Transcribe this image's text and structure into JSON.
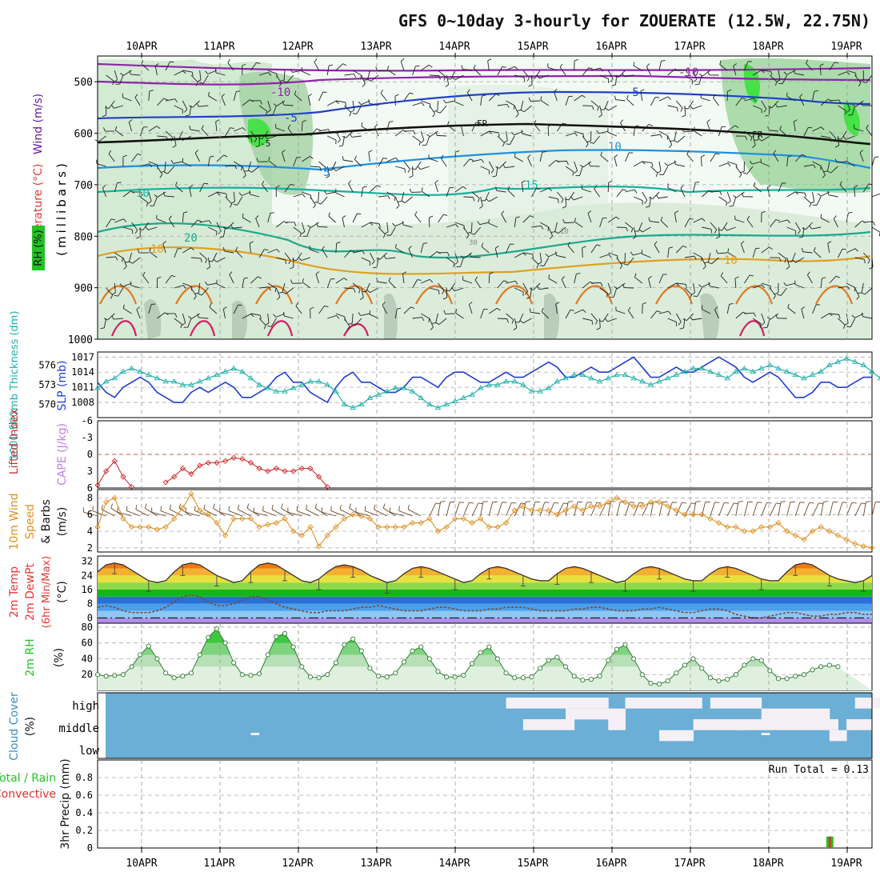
{
  "title": "GFS 0~10day 3-hourly for ZOUERATE (12.5W, 22.75N)",
  "dates": [
    "10APR",
    "11APR",
    "12APR",
    "13APR",
    "14APR",
    "15APR",
    "16APR",
    "17APR",
    "18APR",
    "19APR"
  ],
  "colors": {
    "wind": "#7a1fa2",
    "temperature": "#e53935",
    "rh": "#22c322",
    "slp": "#1f3fd0",
    "thickness": "#20b2aa",
    "cape": "#c080e0",
    "lifted_index": "#d03030",
    "wind10": "#e09020",
    "rain_total": "#22c322",
    "convective": "#e03030",
    "cloud_fill": "#6baed6",
    "cloud_clear": "#f4f0f6"
  },
  "labels": {
    "upper_wind": "Wind (m/s)",
    "upper_temp": "Temperature (°C)",
    "upper_rh": "RH (%)",
    "upper_pressure": "(millibars)",
    "thickness": "1000-500mb Thickness (dm)",
    "slp": "SLP (mb)",
    "lifted_index": "Lifted Index",
    "cape": "CAPE (J/kg)",
    "wind10_a": "10m Wind",
    "wind10_b": "Speed",
    "wind10_c": "& Barbs",
    "wind10_unit": "(m/s)",
    "temp_a": "2m Temp",
    "temp_b": "2m DewPt",
    "temp_c": "(6hr Min/Max)",
    "temp_unit": "(°C)",
    "rh2m": "2m RH",
    "rh2m_unit": "(%)",
    "cloud": "Cloud Cover",
    "cloud_unit": "(%)",
    "precip": "3hr Precip (mm)",
    "precip_total": "Total / Rain",
    "precip_conv": "Convective",
    "run_total": "Run Total = 0.13"
  },
  "chart_data": [
    {
      "type": "contour",
      "name": "upper_air",
      "ylabel": "millibars",
      "pressure_levels": [
        500,
        600,
        700,
        800,
        900,
        1000
      ],
      "ylim": [
        450,
        1000
      ],
      "temperature_contours": [
        -10,
        -5,
        "FR",
        5,
        10,
        15,
        20,
        30
      ],
      "contour_labels": [
        "-10",
        "-10",
        "-5",
        "-5",
        "FR",
        "FR",
        "-5",
        "5",
        "10",
        "10",
        "15",
        "20",
        "10",
        "10",
        "30",
        "10"
      ],
      "rh_levels_percent": [
        30,
        50,
        70,
        90
      ]
    },
    {
      "type": "line",
      "name": "slp_thickness",
      "thickness_ticks": [
        570,
        573,
        576
      ],
      "slp_ticks": [
        1008,
        1011,
        1014,
        1017
      ],
      "series": [
        {
          "name": "SLP (mb)",
          "axis": "right",
          "values": [
            1012,
            1010,
            1009,
            1011,
            1012,
            1013,
            1012,
            1010,
            1009,
            1008,
            1008,
            1010,
            1011,
            1010,
            1011,
            1012,
            1011,
            1009,
            1009,
            1010,
            1011,
            1013,
            1014,
            1012,
            1012,
            1010,
            1009,
            1008,
            1011,
            1013,
            1014,
            1012,
            1012,
            1011,
            1010,
            1010,
            1011,
            1013,
            1013,
            1012,
            1011,
            1013,
            1014,
            1014,
            1013,
            1012,
            1012,
            1013,
            1014,
            1013,
            1013,
            1014,
            1015,
            1016,
            1015,
            1013,
            1013,
            1014,
            1015,
            1014,
            1014,
            1015,
            1016,
            1017,
            1015,
            1013,
            1013,
            1014,
            1015,
            1014,
            1014,
            1015,
            1016,
            1017,
            1016,
            1015,
            1013,
            1012,
            1013,
            1014,
            1013,
            1011,
            1009,
            1009,
            1010,
            1012,
            1012,
            1011,
            1011,
            1012,
            1013,
            1013
          ]
        },
        {
          "name": "1000-500mb Thickness (dm)",
          "axis": "left",
          "values": [
            572.5,
            573.5,
            574,
            575,
            575.5,
            575,
            574.5,
            574,
            573.5,
            573.5,
            573,
            573,
            573.5,
            574,
            574.5,
            575,
            575.5,
            575,
            574,
            573,
            572.5,
            572,
            572,
            572.5,
            573,
            573.5,
            573.5,
            573,
            572,
            570,
            569.5,
            570,
            571,
            571.5,
            572,
            572.5,
            572.5,
            572,
            571,
            570,
            569.5,
            570,
            570.5,
            571,
            571.5,
            572.5,
            573,
            573,
            573.5,
            573.5,
            573,
            572,
            572,
            572.5,
            573.5,
            574,
            574.5,
            574.5,
            574,
            573.5,
            574,
            574.5,
            574.5,
            574,
            573.5,
            573,
            573.5,
            574,
            574.5,
            575,
            575.5,
            575.5,
            575,
            574.5,
            574,
            575,
            575.5,
            575,
            575.5,
            576,
            575.5,
            575,
            574.5,
            574,
            574.5,
            575,
            576,
            576.5,
            577,
            576.5,
            576,
            575,
            574,
            574
          ]
        }
      ]
    },
    {
      "type": "line",
      "name": "lifted_index_cape",
      "ylim": [
        6,
        -6
      ],
      "ticks": [
        -6,
        -3,
        0,
        3,
        6
      ],
      "series": [
        {
          "name": "Lifted Index",
          "segments": [
            {
              "start_index": 0,
              "values": [
                5.5,
                3,
                1.2,
                4,
                5.8
              ]
            },
            {
              "start_index": 8,
              "values": [
                5,
                4,
                2.5,
                3.5,
                2,
                1.5,
                1.5,
                1.2,
                0.6,
                0.8,
                1.5,
                2.5,
                3,
                2.5,
                3,
                3,
                2.5,
                2.5,
                4,
                5.8
              ]
            }
          ]
        },
        {
          "name": "CAPE (J/kg)",
          "values": []
        }
      ]
    },
    {
      "type": "line",
      "name": "wind10",
      "ylim": [
        2,
        9
      ],
      "ticks": [
        2,
        4,
        6,
        8
      ],
      "series": [
        {
          "name": "10m Wind Speed (m/s)",
          "values": [
            4.5,
            7.5,
            8,
            5.5,
            4.5,
            4.5,
            4.5,
            4.2,
            4.5,
            5.5,
            6.8,
            8.5,
            6.5,
            6,
            5,
            3.5,
            5.5,
            5.5,
            5.5,
            4.5,
            4.8,
            5,
            5.5,
            4,
            3.5,
            4.5,
            2.2,
            3.5,
            4.5,
            5.5,
            6,
            5.8,
            5.5,
            4.5,
            4.5,
            4.5,
            4.5,
            5,
            5,
            5.5,
            4,
            4.5,
            5.5,
            5.5,
            5,
            5.5,
            4.5,
            4.5,
            5,
            6.5,
            7,
            6.5,
            6.5,
            6.5,
            6,
            6.5,
            7,
            6.5,
            7,
            7,
            7.5,
            8,
            7.5,
            7,
            7,
            7.5,
            7.5,
            7,
            6.5,
            6,
            6,
            6,
            5.5,
            5,
            4.5,
            4.5,
            4,
            4,
            4.5,
            4.5,
            5,
            4,
            3.5,
            3,
            4,
            4.5,
            4,
            3.5,
            3,
            2.5,
            2.2,
            2
          ]
        }
      ]
    },
    {
      "type": "area",
      "name": "temp2m",
      "ylim": [
        -3,
        35
      ],
      "ticks": [
        0,
        8,
        16,
        24,
        32
      ],
      "series": [
        {
          "name": "2m Temp (°C)",
          "values": [
            26,
            30,
            31,
            30,
            27,
            24,
            21,
            20,
            21,
            26,
            30,
            31,
            30,
            27,
            24,
            22,
            20,
            21,
            26,
            30,
            31,
            30,
            27,
            24,
            21,
            20,
            22,
            26,
            29,
            30,
            29,
            27,
            24,
            22,
            20,
            21,
            25,
            28,
            29,
            28,
            26,
            24,
            22,
            20,
            21,
            25,
            28,
            29,
            28,
            26,
            24,
            22,
            21,
            21,
            25,
            28,
            29,
            28,
            26,
            24,
            22,
            20,
            21,
            25,
            28,
            29,
            28,
            26,
            24,
            22,
            21,
            21,
            25,
            28,
            29,
            28,
            26,
            24,
            22,
            21,
            21,
            26,
            30,
            31,
            30,
            27,
            24,
            22,
            21,
            20,
            21,
            24
          ]
        },
        {
          "name": "2m DewPt (°C)",
          "values": [
            6,
            7,
            6,
            4,
            3,
            3,
            3,
            4,
            6,
            9,
            12,
            13,
            12,
            9,
            7,
            7,
            8,
            10,
            12,
            12,
            10,
            8,
            6,
            5,
            4,
            3,
            3,
            4,
            4,
            4,
            5,
            6,
            6,
            7,
            6,
            5,
            4,
            4,
            4,
            5,
            6,
            6,
            5,
            4,
            4,
            4,
            5,
            5,
            6,
            6,
            6,
            5,
            4,
            4,
            4,
            4,
            5,
            5,
            6,
            6,
            5,
            4,
            4,
            4,
            5,
            5,
            6,
            5,
            4,
            3,
            3,
            4,
            5,
            5,
            4,
            2,
            1,
            0,
            0,
            1,
            2,
            3,
            3,
            2,
            1,
            1,
            2,
            2,
            3,
            3,
            2,
            2
          ]
        }
      ]
    },
    {
      "type": "area",
      "name": "rh2m",
      "ylim": [
        0,
        85
      ],
      "ticks": [
        20,
        40,
        60,
        80
      ],
      "series": [
        {
          "name": "2m RH (%)",
          "values": [
            20,
            18,
            19,
            20,
            30,
            45,
            56,
            40,
            22,
            16,
            18,
            22,
            45,
            67,
            78,
            60,
            35,
            20,
            19,
            21,
            45,
            68,
            72,
            55,
            30,
            17,
            16,
            20,
            35,
            58,
            65,
            50,
            28,
            18,
            17,
            22,
            36,
            50,
            55,
            40,
            24,
            17,
            17,
            19,
            34,
            48,
            55,
            40,
            22,
            16,
            16,
            17,
            28,
            38,
            42,
            30,
            18,
            13,
            14,
            18,
            38,
            52,
            58,
            40,
            20,
            9,
            8,
            12,
            22,
            32,
            40,
            28,
            16,
            12,
            14,
            20,
            32,
            40,
            38,
            25,
            15,
            15,
            18,
            20,
            26,
            30,
            32,
            30
          ]
        }
      ]
    },
    {
      "type": "heatmap",
      "name": "cloud_cover",
      "rows": [
        "high",
        "middle",
        "low"
      ]
    },
    {
      "type": "bar",
      "name": "precip3h",
      "ylim": [
        0,
        1
      ],
      "ticks": [
        0,
        0.2,
        0.4,
        0.6,
        0.8
      ],
      "series": [
        {
          "name": "Total / Rain",
          "bars": [
            {
              "index": 86,
              "value": 0.13
            }
          ]
        },
        {
          "name": "Convective",
          "bars": [
            {
              "index": 86,
              "value": 0.13
            }
          ]
        }
      ],
      "run_total": 0.13
    }
  ]
}
